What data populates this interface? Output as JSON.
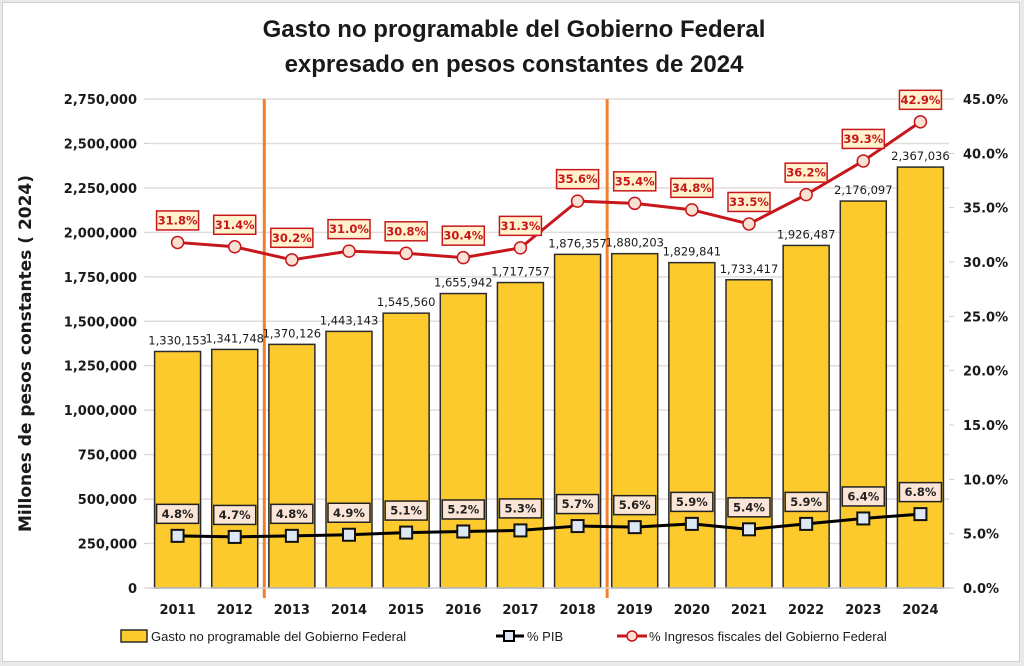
{
  "chart_data": {
    "type": "bar",
    "title": "Gasto no programable del Gobierno Federal",
    "subtitle": "expresado en pesos constantes de 2024",
    "xlabel": "",
    "ylabel": "Millones de pesos constantes ( 2024)",
    "y2label": "",
    "categories": [
      "2011",
      "2012",
      "2013",
      "2014",
      "2015",
      "2016",
      "2017",
      "2018",
      "2019",
      "2020",
      "2021",
      "2022",
      "2023",
      "2024"
    ],
    "ylim": [
      0,
      2750000
    ],
    "y2lim": [
      0,
      45
    ],
    "yticks": [
      "0",
      "250,000",
      "500,000",
      "750,000",
      "1,000,000",
      "1,250,000",
      "1,500,000",
      "1,750,000",
      "2,000,000",
      "2,250,000",
      "2,500,000",
      "2,750,000"
    ],
    "y2ticks": [
      "0.0%",
      "5.0%",
      "10.0%",
      "15.0%",
      "20.0%",
      "25.0%",
      "30.0%",
      "35.0%",
      "40.0%",
      "45.0%"
    ],
    "grid": true,
    "legend_position": "bottom",
    "separators_between": [
      [
        "2012",
        "2013"
      ],
      [
        "2018",
        "2019"
      ]
    ],
    "series": [
      {
        "name": "Gasto no programable del Gobierno Federal",
        "type": "bar",
        "axis": "left",
        "color": "#fdca2e",
        "values": [
          1330153,
          1341748,
          1370126,
          1443143,
          1545560,
          1655942,
          1717757,
          1876357,
          1880203,
          1829841,
          1733417,
          1926487,
          2176097,
          2367036
        ],
        "labels": [
          "1,330,153",
          "1,341,748",
          "1,370,126",
          "1,443,143",
          "1,545,560",
          "1,655,942",
          "1,717,757",
          "1,876,357",
          "1,880,203",
          "1,829,841",
          "1,733,417",
          "1,926,487",
          "2,176,097",
          "2,367,036"
        ]
      },
      {
        "name": "% PIB",
        "type": "line",
        "axis": "right",
        "color": "#000000",
        "marker": "square",
        "values": [
          4.8,
          4.7,
          4.8,
          4.9,
          5.1,
          5.2,
          5.3,
          5.7,
          5.6,
          5.9,
          5.4,
          5.9,
          6.4,
          6.8
        ],
        "labels": [
          "4.8%",
          "4.7%",
          "4.8%",
          "4.9%",
          "5.1%",
          "5.2%",
          "5.3%",
          "5.7%",
          "5.6%",
          "5.9%",
          "5.4%",
          "5.9%",
          "6.4%",
          "6.8%"
        ]
      },
      {
        "name": "% Ingresos fiscales del Gobierno Federal",
        "type": "line",
        "axis": "right",
        "color": "#c8171c",
        "marker": "circle",
        "values": [
          31.8,
          31.4,
          30.2,
          31.0,
          30.8,
          30.4,
          31.3,
          35.6,
          35.4,
          34.8,
          33.5,
          36.2,
          39.3,
          42.9
        ],
        "labels": [
          "31.8%",
          "31.4%",
          "30.2%",
          "31.0%",
          "30.8%",
          "30.4%",
          "31.3%",
          "35.6%",
          "35.4%",
          "34.8%",
          "33.5%",
          "36.2%",
          "39.3%",
          "42.9%"
        ]
      }
    ]
  },
  "colors": {
    "bar_fill": "#fdca2e",
    "bar_stroke": "#2b2b2b",
    "pib_line": "#000000",
    "pib_marker_fill": "#dce9f5",
    "pib_label_fill": "#fbe5d6",
    "ingresos_line": "#c8171c",
    "ingresos_marker_fill": "#fbe0d4",
    "ingresos_label_fill": "#fff2cc",
    "separator": "#f08030",
    "grid": "#e2dcdc"
  }
}
